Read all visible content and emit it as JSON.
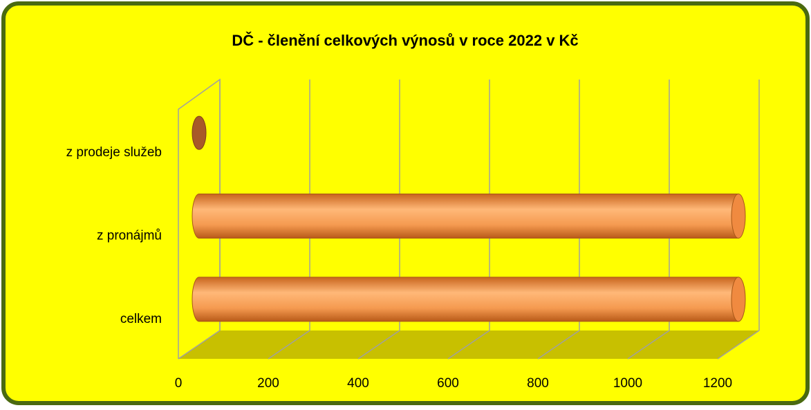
{
  "chart_data": {
    "type": "bar3d-horizontal",
    "title": "DČ - členění celkových výnosů v roce 2022 v Kč",
    "categories": [
      "celkem",
      "z pronájmů",
      "z prodeje služeb"
    ],
    "values": [
      1200,
      1200,
      0
    ],
    "color": "#f59a50",
    "xlim": [
      0,
      1200
    ],
    "xticks": [
      0,
      200,
      400,
      600,
      800,
      1000,
      1200
    ],
    "grid": true
  }
}
